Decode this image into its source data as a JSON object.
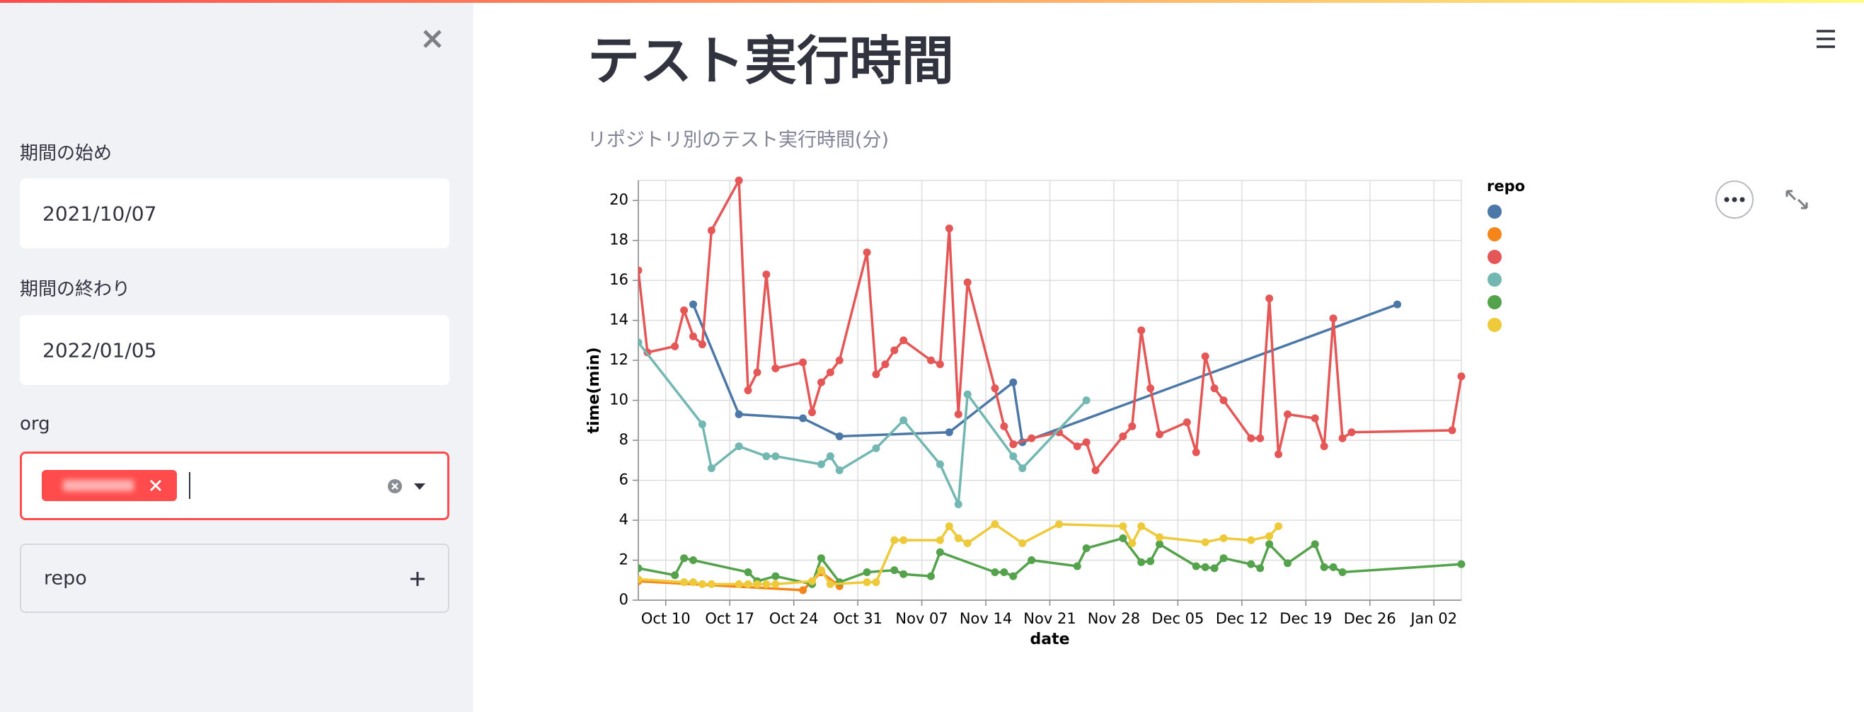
{
  "sidebar": {
    "start_label": "期間の始め",
    "start_value": "2021/10/07",
    "end_label": "期間の終わり",
    "end_value": "2022/01/05",
    "org_label": "org",
    "repo_label": "repo"
  },
  "header": {
    "title": "テスト実行時間",
    "subtitle": "リポジトリ別のテスト実行時間(分)"
  },
  "chart_data": {
    "type": "line",
    "x_label": "date",
    "y_label": "time(min)",
    "legend_title": "repo",
    "grid": true,
    "xlim": [
      "Oct 7",
      "Jan 5"
    ],
    "xticks": [
      "Oct 10",
      "Oct 17",
      "Oct 24",
      "Oct 31",
      "Nov 07",
      "Nov 14",
      "Nov 21",
      "Nov 28",
      "Dec 05",
      "Dec 12",
      "Dec 19",
      "Dec 26",
      "Jan 02"
    ],
    "ylim": [
      0,
      21
    ],
    "yticks": [
      0,
      2,
      4,
      6,
      8,
      10,
      12,
      14,
      16,
      18,
      20
    ],
    "series": [
      {
        "color": "#4c78a8",
        "x": [
          "Oct 13",
          "Oct 18",
          "Oct 25",
          "Oct 29",
          "Nov 10",
          "Nov 17",
          "Nov 18",
          "Dec 29"
        ],
        "values": [
          14.8,
          9.3,
          9.1,
          8.2,
          8.4,
          10.9,
          7.9,
          14.8
        ]
      },
      {
        "color": "#f58518",
        "x": [
          "Oct 7",
          "Oct 25",
          "Oct 27",
          "Oct 29"
        ],
        "values": [
          0.95,
          0.5,
          1.4,
          0.7
        ]
      },
      {
        "color": "#e45756",
        "x": [
          "Oct 7",
          "Oct 8",
          "Oct 11",
          "Oct 12",
          "Oct 13",
          "Oct 14",
          "Oct 15",
          "Oct 18",
          "Oct 19",
          "Oct 20",
          "Oct 21",
          "Oct 22",
          "Oct 25",
          "Oct 26",
          "Oct 27",
          "Oct 28",
          "Oct 29",
          "Nov 1",
          "Nov 2",
          "Nov 3",
          "Nov 4",
          "Nov 5",
          "Nov 8",
          "Nov 9",
          "Nov 10",
          "Nov 11",
          "Nov 12",
          "Nov 15",
          "Nov 16",
          "Nov 17",
          "Nov 19",
          "Nov 22",
          "Nov 24",
          "Nov 25",
          "Nov 26",
          "Nov 29",
          "Nov 30",
          "Dec 1",
          "Dec 2",
          "Dec 3",
          "Dec 6",
          "Dec 7",
          "Dec 8",
          "Dec 9",
          "Dec 10",
          "Dec 13",
          "Dec 14",
          "Dec 15",
          "Dec 16",
          "Dec 17",
          "Dec 20",
          "Dec 21",
          "Dec 22",
          "Dec 23",
          "Dec 24",
          "Jan 4",
          "Jan 5"
        ],
        "values": [
          16.5,
          12.4,
          12.7,
          14.5,
          13.2,
          12.8,
          18.5,
          21,
          10.5,
          11.4,
          16.3,
          11.6,
          11.9,
          9.4,
          10.9,
          11.4,
          12.0,
          17.4,
          11.3,
          11.8,
          12.5,
          13.0,
          12.0,
          11.8,
          18.6,
          9.3,
          15.9,
          10.6,
          8.7,
          7.8,
          8.1,
          8.4,
          7.7,
          7.9,
          6.5,
          8.2,
          8.7,
          13.5,
          10.6,
          8.3,
          8.9,
          7.4,
          12.2,
          10.6,
          10.0,
          8.1,
          8.1,
          15.1,
          7.3,
          9.3,
          9.1,
          7.7,
          14.1,
          8.1,
          8.4,
          8.5,
          11.2
        ]
      },
      {
        "color": "#72b7b2",
        "x": [
          "Oct 7",
          "Oct 14",
          "Oct 15",
          "Oct 18",
          "Oct 21",
          "Oct 22",
          "Oct 27",
          "Oct 28",
          "Oct 29",
          "Nov 2",
          "Nov 5",
          "Nov 9",
          "Nov 11",
          "Nov 12",
          "Nov 17",
          "Nov 18",
          "Nov 25"
        ],
        "values": [
          12.9,
          8.8,
          6.6,
          7.7,
          7.2,
          7.2,
          6.8,
          7.2,
          6.5,
          7.6,
          9.0,
          6.8,
          4.8,
          10.3,
          7.2,
          6.6,
          10.0
        ]
      },
      {
        "color": "#54a24b",
        "x": [
          "Oct 7",
          "Oct 11",
          "Oct 12",
          "Oct 13",
          "Oct 19",
          "Oct 20",
          "Oct 22",
          "Oct 26",
          "Oct 27",
          "Oct 29",
          "Nov 1",
          "Nov 4",
          "Nov 5",
          "Nov 8",
          "Nov 9",
          "Nov 15",
          "Nov 16",
          "Nov 17",
          "Nov 19",
          "Nov 24",
          "Nov 25",
          "Nov 29",
          "Dec 1",
          "Dec 2",
          "Dec 3",
          "Dec 7",
          "Dec 8",
          "Dec 9",
          "Dec 10",
          "Dec 13",
          "Dec 14",
          "Dec 15",
          "Dec 17",
          "Dec 20",
          "Dec 21",
          "Dec 22",
          "Dec 23",
          "Jan 5"
        ],
        "values": [
          1.6,
          1.25,
          2.1,
          2.0,
          1.4,
          0.95,
          1.2,
          0.8,
          2.1,
          0.9,
          1.4,
          1.5,
          1.3,
          1.2,
          2.4,
          1.4,
          1.4,
          1.2,
          2.0,
          1.7,
          2.6,
          3.1,
          1.9,
          1.95,
          2.8,
          1.7,
          1.65,
          1.6,
          2.1,
          1.8,
          1.6,
          2.8,
          1.85,
          2.8,
          1.65,
          1.65,
          1.4,
          1.8
        ]
      },
      {
        "color": "#eeca3b",
        "x": [
          "Oct 7",
          "Oct 12",
          "Oct 13",
          "Oct 14",
          "Oct 15",
          "Oct 18",
          "Oct 19",
          "Oct 20",
          "Oct 21",
          "Oct 22",
          "Oct 26",
          "Oct 27",
          "Oct 28",
          "Nov 1",
          "Nov 2",
          "Nov 4",
          "Nov 5",
          "Nov 9",
          "Nov 10",
          "Nov 11",
          "Nov 12",
          "Nov 15",
          "Nov 18",
          "Nov 22",
          "Nov 29",
          "Nov 30",
          "Dec 1",
          "Dec 3",
          "Dec 8",
          "Dec 10",
          "Dec 13",
          "Dec 15",
          "Dec 16"
        ],
        "values": [
          1.05,
          0.9,
          0.9,
          0.8,
          0.8,
          0.8,
          0.8,
          0.8,
          0.8,
          0.8,
          0.95,
          1.5,
          0.8,
          0.9,
          0.9,
          3.0,
          3.0,
          3.0,
          3.7,
          3.1,
          2.85,
          3.8,
          2.85,
          3.8,
          3.7,
          2.85,
          3.7,
          3.15,
          2.9,
          3.1,
          3.0,
          3.2,
          3.7
        ]
      }
    ]
  }
}
